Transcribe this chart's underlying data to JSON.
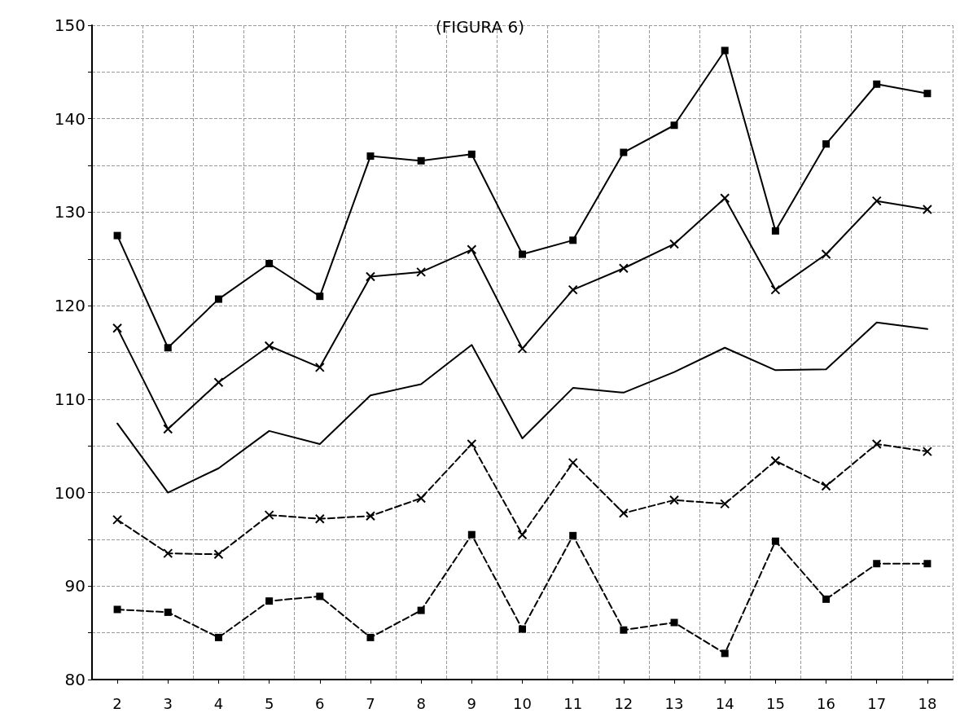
{
  "chart_data": {
    "type": "line",
    "title": "(FIGURA 6)",
    "categories": [
      "2",
      "3",
      "4",
      "5",
      "6",
      "7",
      "8",
      "9",
      "10",
      "11",
      "12",
      "13",
      "14",
      "15",
      "16",
      "17",
      "18"
    ],
    "ylim": [
      80,
      150
    ],
    "yticks": [
      80,
      {
        "value": 85,
        "label": null
      },
      90,
      {
        "value": 95,
        "label": null
      },
      100,
      {
        "value": 105,
        "label": null
      },
      110,
      {
        "value": 115,
        "label": null
      },
      120,
      {
        "value": 125,
        "label": null
      },
      130,
      {
        "value": 135,
        "label": null
      },
      140,
      {
        "value": 145,
        "label": null
      },
      150
    ],
    "grid": true,
    "series": [
      {
        "color": "#000000",
        "marker": "square",
        "line_style": "solid",
        "values": [
          127.5,
          115.5,
          120.7,
          124.5,
          121,
          136,
          135.5,
          136.2,
          125.5,
          127,
          136.4,
          139.3,
          147.3,
          128,
          137.3,
          143.7,
          142.7
        ]
      },
      {
        "color": "#000000",
        "marker": "cross",
        "line_style": "solid",
        "values": [
          117.6,
          106.8,
          111.8,
          115.7,
          113.4,
          123.1,
          123.6,
          126,
          115.4,
          121.7,
          124,
          126.6,
          131.5,
          121.7,
          125.5,
          131.2,
          130.3
        ]
      },
      {
        "color": "#000000",
        "marker": "none",
        "line_style": "solid",
        "values": [
          107.4,
          100,
          102.6,
          106.6,
          105.2,
          110.4,
          111.6,
          115.8,
          105.8,
          111.2,
          110.7,
          112.9,
          115.5,
          113.1,
          113.2,
          118.2,
          117.5
        ]
      },
      {
        "color": "#000000",
        "marker": "cross",
        "line_style": "dashed",
        "values": [
          97.1,
          93.5,
          93.4,
          97.6,
          97.2,
          97.5,
          99.4,
          105.2,
          95.5,
          103.2,
          97.8,
          99.2,
          98.8,
          103.4,
          100.7,
          105.2,
          104.4
        ]
      },
      {
        "color": "#000000",
        "marker": "square",
        "line_style": "dashed",
        "values": [
          87.5,
          87.2,
          84.5,
          88.4,
          88.9,
          84.5,
          87.4,
          95.5,
          85.4,
          95.4,
          85.3,
          86.1,
          82.8,
          94.8,
          88.6,
          92.4,
          92.4
        ]
      }
    ]
  }
}
